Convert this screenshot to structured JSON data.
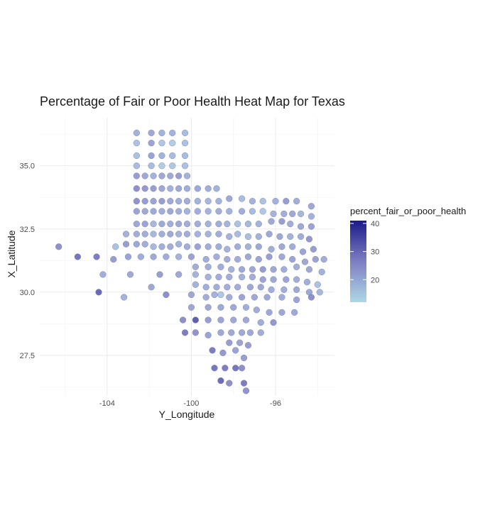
{
  "chart_data": {
    "type": "scatter",
    "title": "Percentage of Fair or Poor Health Heat Map for Texas",
    "xlabel": "Y_Longitude",
    "ylabel": "X_Latitude",
    "xlim": [
      -107.2,
      -93.2
    ],
    "ylim": [
      25.9,
      36.9
    ],
    "x_ticks": [
      -104,
      -100,
      -96
    ],
    "x_tick_labels": [
      "-104",
      "-100",
      "-96"
    ],
    "y_ticks": [
      27.5,
      30.0,
      32.5,
      35.0
    ],
    "y_tick_labels": [
      "27.5",
      "30.0",
      "32.5",
      "35.0"
    ],
    "grid": true,
    "legend": {
      "title": "percent_fair_or_poor_health",
      "position": "right",
      "range": [
        12,
        41
      ],
      "ticks": [
        20,
        30,
        40
      ],
      "tick_labels": [
        "20",
        "30",
        "40"
      ],
      "low_color": "#add8e6",
      "high_color": "#1a1a8a"
    },
    "points": [
      [
        -102.6,
        36.3,
        20
      ],
      [
        -101.9,
        36.3,
        22
      ],
      [
        -101.4,
        36.3,
        20
      ],
      [
        -100.9,
        36.3,
        20
      ],
      [
        -100.3,
        36.3,
        18
      ],
      [
        -102.6,
        35.9,
        17
      ],
      [
        -101.9,
        35.9,
        23
      ],
      [
        -101.4,
        35.9,
        16
      ],
      [
        -100.9,
        35.9,
        15
      ],
      [
        -100.3,
        35.9,
        17
      ],
      [
        -102.6,
        35.4,
        17
      ],
      [
        -101.9,
        35.4,
        23
      ],
      [
        -101.4,
        35.4,
        20
      ],
      [
        -100.9,
        35.4,
        18
      ],
      [
        -100.3,
        35.4,
        18
      ],
      [
        -102.6,
        35.0,
        18
      ],
      [
        -101.9,
        35.0,
        18
      ],
      [
        -101.4,
        35.0,
        15
      ],
      [
        -100.9,
        35.0,
        16
      ],
      [
        -100.3,
        35.0,
        17
      ],
      [
        -102.6,
        34.6,
        24
      ],
      [
        -102.2,
        34.6,
        22
      ],
      [
        -101.8,
        34.6,
        20
      ],
      [
        -101.4,
        34.6,
        22
      ],
      [
        -101.0,
        34.6,
        22
      ],
      [
        -100.6,
        34.6,
        24
      ],
      [
        -100.2,
        34.6,
        20
      ],
      [
        -102.6,
        34.1,
        27
      ],
      [
        -102.2,
        34.1,
        25
      ],
      [
        -101.8,
        34.1,
        24
      ],
      [
        -101.4,
        34.1,
        22
      ],
      [
        -101.0,
        34.1,
        20
      ],
      [
        -100.6,
        34.1,
        22
      ],
      [
        -100.2,
        34.1,
        21
      ],
      [
        -99.7,
        34.1,
        22
      ],
      [
        -99.2,
        34.1,
        21
      ],
      [
        -98.8,
        34.1,
        20
      ],
      [
        -102.6,
        33.6,
        26
      ],
      [
        -102.2,
        33.6,
        24
      ],
      [
        -101.8,
        33.6,
        23
      ],
      [
        -101.4,
        33.6,
        24
      ],
      [
        -101.0,
        33.6,
        22
      ],
      [
        -100.6,
        33.6,
        21
      ],
      [
        -100.2,
        33.6,
        21
      ],
      [
        -99.7,
        33.6,
        20
      ],
      [
        -99.2,
        33.6,
        19
      ],
      [
        -98.7,
        33.6,
        20
      ],
      [
        -98.2,
        33.7,
        22
      ],
      [
        -97.6,
        33.7,
        18
      ],
      [
        -97.1,
        33.6,
        20
      ],
      [
        -96.6,
        33.6,
        17
      ],
      [
        -96.0,
        33.6,
        20
      ],
      [
        -95.5,
        33.6,
        24
      ],
      [
        -95.0,
        33.6,
        21
      ],
      [
        -94.3,
        33.4,
        22
      ],
      [
        -102.6,
        33.2,
        23
      ],
      [
        -102.2,
        33.2,
        22
      ],
      [
        -101.8,
        33.2,
        22
      ],
      [
        -101.4,
        33.2,
        21
      ],
      [
        -101.0,
        33.2,
        22
      ],
      [
        -100.6,
        33.2,
        21
      ],
      [
        -100.2,
        33.2,
        20
      ],
      [
        -99.7,
        33.2,
        21
      ],
      [
        -99.2,
        33.2,
        20
      ],
      [
        -98.7,
        33.2,
        21
      ],
      [
        -98.2,
        33.2,
        20
      ],
      [
        -97.6,
        33.2,
        21
      ],
      [
        -97.1,
        33.2,
        18
      ],
      [
        -96.6,
        33.2,
        16
      ],
      [
        -96.1,
        33.1,
        20
      ],
      [
        -95.6,
        33.1,
        21
      ],
      [
        -95.2,
        33.1,
        22
      ],
      [
        -94.8,
        33.1,
        19
      ],
      [
        -94.3,
        33.0,
        20
      ],
      [
        -102.6,
        32.7,
        22
      ],
      [
        -102.2,
        32.7,
        23
      ],
      [
        -101.8,
        32.7,
        19
      ],
      [
        -101.4,
        32.7,
        22
      ],
      [
        -101.0,
        32.7,
        21
      ],
      [
        -100.6,
        32.7,
        22
      ],
      [
        -100.2,
        32.7,
        21
      ],
      [
        -99.7,
        32.7,
        21
      ],
      [
        -99.2,
        32.7,
        20
      ],
      [
        -98.7,
        32.7,
        21
      ],
      [
        -98.3,
        32.7,
        20
      ],
      [
        -97.8,
        32.7,
        17
      ],
      [
        -97.3,
        32.7,
        19
      ],
      [
        -96.8,
        32.7,
        20
      ],
      [
        -96.2,
        32.8,
        22
      ],
      [
        -95.7,
        32.8,
        24
      ],
      [
        -95.3,
        32.7,
        21
      ],
      [
        -94.8,
        32.6,
        22
      ],
      [
        -94.3,
        32.6,
        23
      ],
      [
        -103.1,
        32.3,
        20
      ],
      [
        -102.6,
        32.3,
        21
      ],
      [
        -102.2,
        32.3,
        21
      ],
      [
        -101.8,
        32.3,
        19
      ],
      [
        -101.4,
        32.3,
        21
      ],
      [
        -101.0,
        32.3,
        22
      ],
      [
        -100.6,
        32.3,
        20
      ],
      [
        -100.2,
        32.3,
        21
      ],
      [
        -99.7,
        32.3,
        20
      ],
      [
        -99.2,
        32.3,
        20
      ],
      [
        -98.7,
        32.3,
        21
      ],
      [
        -98.2,
        32.2,
        20
      ],
      [
        -97.8,
        32.3,
        18
      ],
      [
        -97.3,
        32.2,
        18
      ],
      [
        -96.8,
        32.2,
        20
      ],
      [
        -96.3,
        32.3,
        22
      ],
      [
        -95.8,
        32.2,
        22
      ],
      [
        -95.3,
        32.2,
        20
      ],
      [
        -94.8,
        32.2,
        21
      ],
      [
        -94.4,
        32.1,
        25
      ],
      [
        -106.3,
        31.8,
        27
      ],
      [
        -103.6,
        31.8,
        17
      ],
      [
        -103.1,
        31.9,
        24
      ],
      [
        -102.6,
        31.9,
        22
      ],
      [
        -102.2,
        31.9,
        21
      ],
      [
        -101.8,
        31.8,
        19
      ],
      [
        -101.4,
        31.8,
        21
      ],
      [
        -101.0,
        31.8,
        21
      ],
      [
        -100.6,
        31.9,
        20
      ],
      [
        -100.2,
        31.8,
        21
      ],
      [
        -99.7,
        31.8,
        23
      ],
      [
        -99.2,
        31.8,
        21
      ],
      [
        -98.7,
        31.8,
        21
      ],
      [
        -98.3,
        31.7,
        20
      ],
      [
        -97.8,
        31.8,
        21
      ],
      [
        -97.3,
        31.8,
        20
      ],
      [
        -96.8,
        31.8,
        22
      ],
      [
        -96.2,
        31.7,
        21
      ],
      [
        -95.7,
        31.8,
        22
      ],
      [
        -95.2,
        31.8,
        21
      ],
      [
        -94.7,
        31.6,
        23
      ],
      [
        -94.2,
        31.7,
        24
      ],
      [
        -105.4,
        31.4,
        31
      ],
      [
        -104.5,
        31.4,
        30
      ],
      [
        -103.7,
        31.3,
        24
      ],
      [
        -103.0,
        31.4,
        23
      ],
      [
        -102.4,
        31.4,
        21
      ],
      [
        -101.8,
        31.4,
        22
      ],
      [
        -101.2,
        31.4,
        21
      ],
      [
        -100.6,
        31.4,
        20
      ],
      [
        -100.0,
        31.4,
        23
      ],
      [
        -99.3,
        31.3,
        21
      ],
      [
        -98.8,
        31.4,
        21
      ],
      [
        -98.3,
        31.3,
        21
      ],
      [
        -97.8,
        31.3,
        21
      ],
      [
        -97.3,
        31.4,
        22
      ],
      [
        -96.8,
        31.3,
        23
      ],
      [
        -96.3,
        31.4,
        24
      ],
      [
        -95.7,
        31.4,
        22
      ],
      [
        -95.2,
        31.3,
        23
      ],
      [
        -94.6,
        31.2,
        22
      ],
      [
        -94.1,
        31.3,
        23
      ],
      [
        -93.7,
        31.3,
        21
      ],
      [
        -99.8,
        31.0,
        21
      ],
      [
        -99.2,
        31.0,
        21
      ],
      [
        -98.6,
        31.0,
        21
      ],
      [
        -98.1,
        30.9,
        20
      ],
      [
        -97.6,
        30.9,
        22
      ],
      [
        -97.1,
        30.9,
        22
      ],
      [
        -96.6,
        30.9,
        24
      ],
      [
        -96.1,
        30.9,
        22
      ],
      [
        -95.6,
        30.9,
        21
      ],
      [
        -95.0,
        31.0,
        21
      ],
      [
        -94.4,
        30.9,
        22
      ],
      [
        -93.8,
        30.8,
        20
      ],
      [
        -104.2,
        30.7,
        21
      ],
      [
        -102.9,
        30.7,
        22
      ],
      [
        -101.5,
        30.7,
        24
      ],
      [
        -100.6,
        30.7,
        22
      ],
      [
        -99.8,
        30.7,
        20
      ],
      [
        -99.2,
        30.6,
        20
      ],
      [
        -98.7,
        30.6,
        21
      ],
      [
        -98.2,
        30.6,
        21
      ],
      [
        -97.6,
        30.6,
        20
      ],
      [
        -97.1,
        30.6,
        21
      ],
      [
        -96.6,
        30.5,
        23
      ],
      [
        -96.1,
        30.5,
        22
      ],
      [
        -95.5,
        30.5,
        23
      ],
      [
        -95.0,
        30.5,
        21
      ],
      [
        -94.5,
        30.4,
        21
      ],
      [
        -94.0,
        30.3,
        17
      ],
      [
        -101.9,
        30.2,
        22
      ],
      [
        -99.8,
        30.3,
        20
      ],
      [
        -99.3,
        30.2,
        21
      ],
      [
        -98.8,
        30.2,
        21
      ],
      [
        -98.3,
        30.2,
        21
      ],
      [
        -97.8,
        30.2,
        21
      ],
      [
        -97.2,
        30.2,
        22
      ],
      [
        -96.7,
        30.2,
        22
      ],
      [
        -96.2,
        30.1,
        21
      ],
      [
        -95.6,
        30.1,
        21
      ],
      [
        -95.0,
        30.1,
        22
      ],
      [
        -94.4,
        30.0,
        22
      ],
      [
        -93.9,
        30.0,
        19
      ],
      [
        -104.4,
        30.0,
        33
      ],
      [
        -103.2,
        29.8,
        20
      ],
      [
        -101.2,
        29.9,
        27
      ],
      [
        -100.0,
        29.9,
        22
      ],
      [
        -99.3,
        29.8,
        21
      ],
      [
        -98.9,
        29.9,
        20
      ],
      [
        -98.6,
        29.9,
        16
      ],
      [
        -98.2,
        29.8,
        21
      ],
      [
        -97.6,
        29.8,
        23
      ],
      [
        -97.0,
        29.8,
        22
      ],
      [
        -96.4,
        29.8,
        22
      ],
      [
        -95.7,
        29.8,
        21
      ],
      [
        -95.0,
        29.7,
        23
      ],
      [
        -94.3,
        29.8,
        27
      ],
      [
        -100.0,
        29.4,
        22
      ],
      [
        -99.2,
        29.4,
        22
      ],
      [
        -98.6,
        29.4,
        22
      ],
      [
        -98.0,
        29.4,
        22
      ],
      [
        -97.4,
        29.4,
        21
      ],
      [
        -96.9,
        29.3,
        21
      ],
      [
        -96.3,
        29.2,
        22
      ],
      [
        -95.7,
        29.2,
        22
      ],
      [
        -95.1,
        29.2,
        22
      ],
      [
        -100.4,
        28.9,
        27
      ],
      [
        -99.8,
        28.9,
        35
      ],
      [
        -99.2,
        28.9,
        24
      ],
      [
        -98.6,
        28.9,
        23
      ],
      [
        -98.0,
        28.9,
        22
      ],
      [
        -97.4,
        28.9,
        22
      ],
      [
        -96.7,
        28.8,
        21
      ],
      [
        -96.1,
        28.8,
        25
      ],
      [
        -100.3,
        28.4,
        30
      ],
      [
        -99.8,
        28.4,
        26
      ],
      [
        -99.2,
        28.3,
        23
      ],
      [
        -98.6,
        28.4,
        22
      ],
      [
        -98.1,
        28.4,
        22
      ],
      [
        -97.6,
        28.4,
        22
      ],
      [
        -97.2,
        28.4,
        22
      ],
      [
        -96.7,
        28.4,
        21
      ],
      [
        -98.2,
        28.0,
        24
      ],
      [
        -97.7,
        28.0,
        23
      ],
      [
        -97.3,
        27.9,
        24
      ],
      [
        -99.0,
        27.7,
        30
      ],
      [
        -98.5,
        27.6,
        25
      ],
      [
        -97.9,
        27.7,
        23
      ],
      [
        -97.5,
        27.4,
        24
      ],
      [
        -98.9,
        27.0,
        31
      ],
      [
        -98.4,
        27.0,
        30
      ],
      [
        -97.9,
        27.0,
        31
      ],
      [
        -97.6,
        27.0,
        27
      ],
      [
        -98.6,
        26.5,
        33
      ],
      [
        -98.2,
        26.4,
        27
      ],
      [
        -97.5,
        26.4,
        30
      ],
      [
        -97.4,
        26.1,
        26
      ]
    ]
  }
}
